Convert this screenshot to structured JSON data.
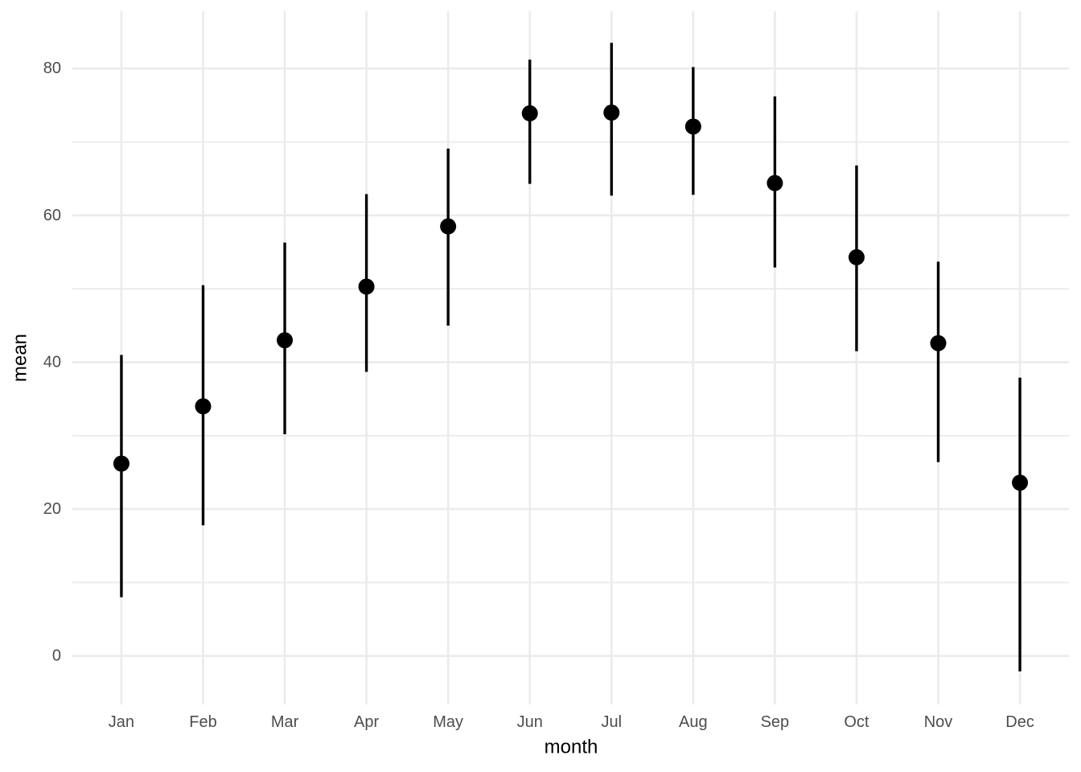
{
  "chart_data": {
    "type": "scatter",
    "style": "pointrange",
    "title": "",
    "xlabel": "month",
    "ylabel": "mean",
    "categories": [
      "Jan",
      "Feb",
      "Mar",
      "Apr",
      "May",
      "Jun",
      "Jul",
      "Aug",
      "Sep",
      "Oct",
      "Nov",
      "Dec"
    ],
    "series": [
      {
        "name": "mean",
        "values": [
          26.2,
          34.0,
          43.0,
          50.3,
          58.5,
          73.9,
          74.0,
          72.1,
          64.4,
          54.3,
          42.6,
          23.6
        ]
      },
      {
        "name": "lower",
        "values": [
          8.0,
          17.8,
          30.2,
          38.7,
          45.0,
          64.3,
          62.7,
          62.8,
          52.9,
          41.5,
          26.4,
          -2.1
        ]
      },
      {
        "name": "upper",
        "values": [
          41.0,
          50.5,
          56.3,
          62.9,
          69.1,
          81.2,
          83.5,
          80.2,
          76.2,
          66.8,
          53.7,
          37.9
        ]
      }
    ],
    "ylim": [
      -6.6,
      87.8
    ],
    "y_ticks_major": [
      0,
      20,
      40,
      60,
      80
    ],
    "y_ticks_minor": [
      10,
      30,
      50,
      70
    ],
    "grid": true,
    "legend": false,
    "colors": {
      "point": "#000000",
      "range_line": "#000000",
      "grid_major": "#ebebeb",
      "grid_minor": "#ebebeb",
      "tick_label": "#4d4d4d",
      "axis_title": "#000000",
      "background": "#ffffff"
    }
  }
}
